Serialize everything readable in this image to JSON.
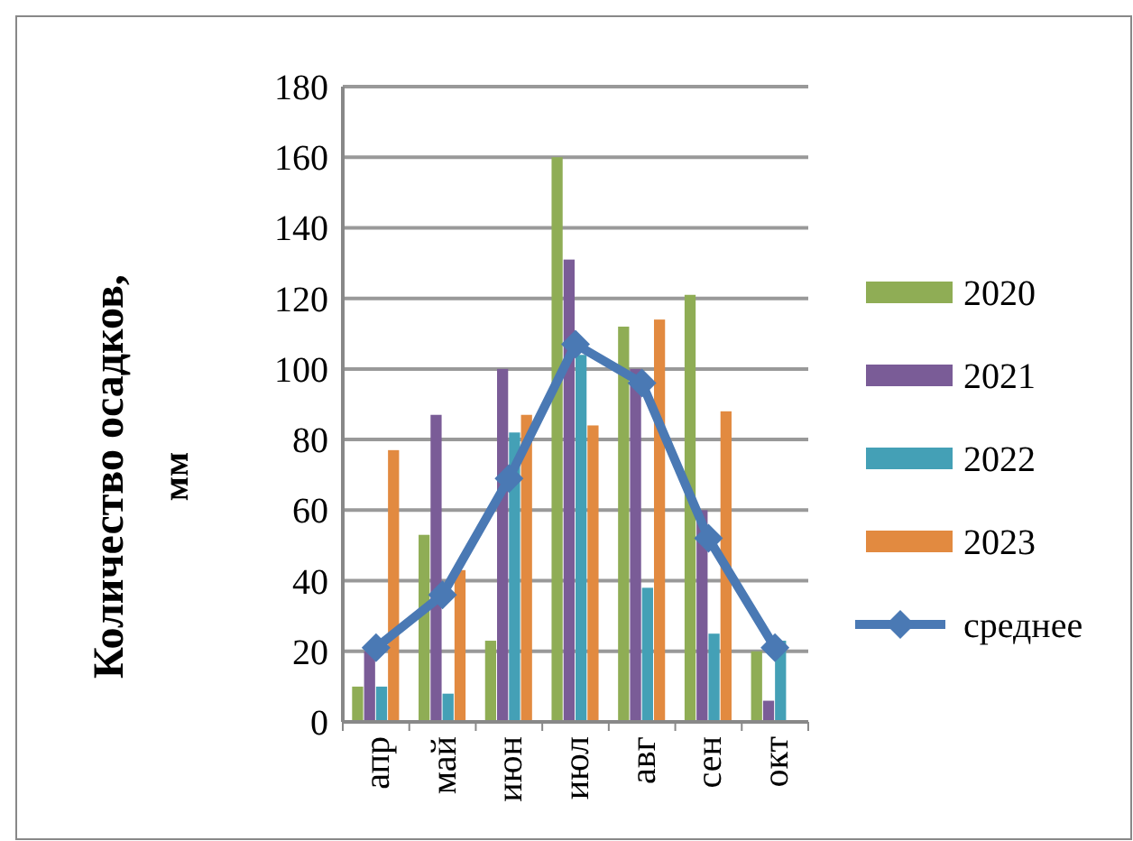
{
  "chart_data": {
    "type": "bar",
    "ylabel": "Количество осадков, мм",
    "categories": [
      "апр",
      "май",
      "июн",
      "июл",
      "авг",
      "сен",
      "окт"
    ],
    "series": [
      {
        "name": "2020",
        "color": "#8fad55",
        "values": [
          10,
          53,
          23,
          160,
          112,
          121,
          20
        ]
      },
      {
        "name": "2021",
        "color": "#7a5c97",
        "values": [
          20,
          87,
          100,
          131,
          100,
          60,
          6
        ]
      },
      {
        "name": "2022",
        "color": "#44a0b6",
        "values": [
          10,
          8,
          82,
          104,
          38,
          25,
          23
        ]
      },
      {
        "name": "2023",
        "color": "#e28a40",
        "values": [
          77,
          43,
          87,
          84,
          114,
          88,
          null
        ]
      },
      {
        "name": "среднее",
        "type": "line",
        "color": "#4a79b4",
        "marker": "diamond",
        "values": [
          21,
          36,
          69,
          107,
          96,
          52,
          21
        ]
      }
    ],
    "ylim": [
      0,
      180
    ],
    "yticks": [
      0,
      20,
      40,
      60,
      80,
      100,
      120,
      140,
      160,
      180
    ],
    "grid": "y",
    "legend": "right"
  }
}
